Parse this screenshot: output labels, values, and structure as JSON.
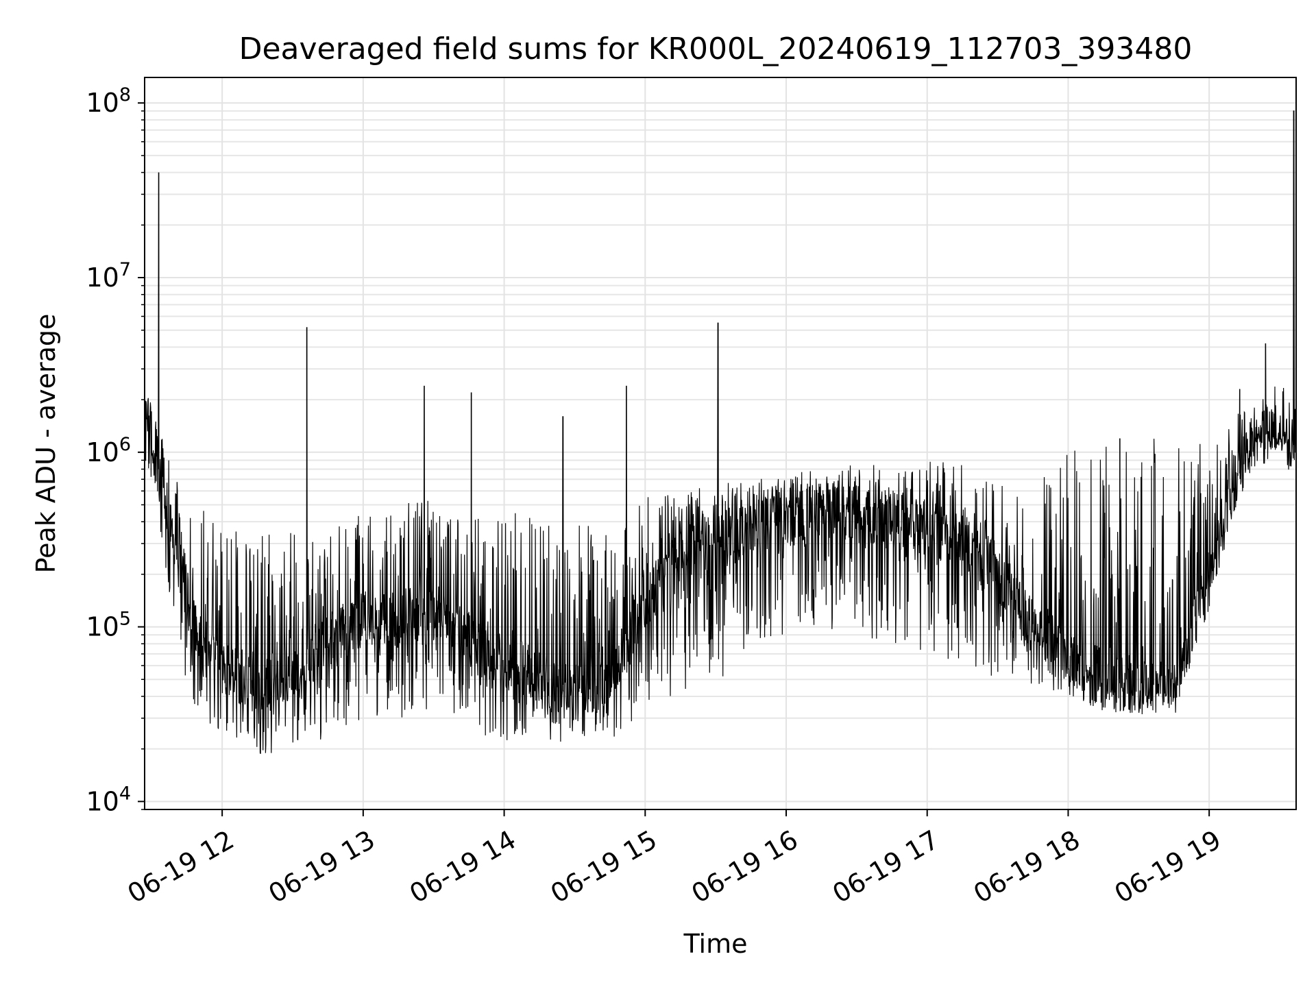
{
  "chart_data": {
    "type": "line",
    "title": "Deaveraged field sums for KR000L_20240619_112703_393480",
    "xlabel": "Time",
    "ylabel": "Peak ADU - average",
    "yscale": "log",
    "ylim": [
      9000,
      140000000
    ],
    "xlim": [
      "2024-06-19 11:27",
      "2024-06-19 19:37"
    ],
    "grid": true,
    "line_color": "#000000",
    "x_ticks": [
      {
        "t": "2024-06-19 12:00",
        "label": "06-19 12"
      },
      {
        "t": "2024-06-19 13:00",
        "label": "06-19 13"
      },
      {
        "t": "2024-06-19 14:00",
        "label": "06-19 14"
      },
      {
        "t": "2024-06-19 15:00",
        "label": "06-19 15"
      },
      {
        "t": "2024-06-19 16:00",
        "label": "06-19 16"
      },
      {
        "t": "2024-06-19 17:00",
        "label": "06-19 17"
      },
      {
        "t": "2024-06-19 18:00",
        "label": "06-19 18"
      },
      {
        "t": "2024-06-19 19:00",
        "label": "06-19 19"
      }
    ],
    "y_ticks": [
      {
        "value": 10000,
        "base": "10",
        "exp": "4"
      },
      {
        "value": 100000,
        "base": "10",
        "exp": "5"
      },
      {
        "value": 1000000,
        "base": "10",
        "exp": "6"
      },
      {
        "value": 10000000,
        "base": "10",
        "exp": "7"
      },
      {
        "value": 100000000,
        "base": "10",
        "exp": "8"
      }
    ],
    "series": [
      {
        "x": [
          "2024-06-19 11:27",
          "2024-06-19 11:30",
          "2024-06-19 11:33",
          "2024-06-19 11:36",
          "2024-06-19 11:40",
          "2024-06-19 11:45",
          "2024-06-19 11:50",
          "2024-06-19 12:00",
          "2024-06-19 12:10",
          "2024-06-19 12:20",
          "2024-06-19 12:30",
          "2024-06-19 12:40",
          "2024-06-19 12:50",
          "2024-06-19 13:00",
          "2024-06-19 13:15",
          "2024-06-19 13:30",
          "2024-06-19 13:45",
          "2024-06-19 14:00",
          "2024-06-19 14:15",
          "2024-06-19 14:30",
          "2024-06-19 14:45",
          "2024-06-19 15:00",
          "2024-06-19 15:15",
          "2024-06-19 15:30",
          "2024-06-19 15:45",
          "2024-06-19 16:00",
          "2024-06-19 16:15",
          "2024-06-19 16:30",
          "2024-06-19 16:45",
          "2024-06-19 17:00",
          "2024-06-19 17:15",
          "2024-06-19 17:30",
          "2024-06-19 17:45",
          "2024-06-19 18:00",
          "2024-06-19 18:15",
          "2024-06-19 18:30",
          "2024-06-19 18:45",
          "2024-06-19 19:00",
          "2024-06-19 19:10",
          "2024-06-19 19:20",
          "2024-06-19 19:30",
          "2024-06-19 19:36"
        ],
        "y": [
          1500000,
          1200000,
          800000,
          500000,
          300000,
          150000,
          90000,
          60000,
          50000,
          45000,
          50000,
          70000,
          90000,
          100000,
          110000,
          120000,
          90000,
          60000,
          50000,
          45000,
          50000,
          150000,
          250000,
          300000,
          380000,
          450000,
          480000,
          450000,
          400000,
          380000,
          300000,
          200000,
          100000,
          70000,
          50000,
          45000,
          45000,
          200000,
          600000,
          1300000,
          1200000,
          1100000
        ],
        "lower": [
          900000,
          700000,
          400000,
          200000,
          100000,
          40000,
          30000,
          25000,
          20000,
          18000,
          20000,
          22000,
          25000,
          30000,
          30000,
          30000,
          25000,
          22000,
          22000,
          22000,
          22000,
          30000,
          40000,
          50000,
          60000,
          80000,
          100000,
          90000,
          80000,
          70000,
          60000,
          50000,
          45000,
          40000,
          32000,
          32000,
          35000,
          120000,
          400000,
          1000000,
          1000000,
          900000
        ],
        "upper": [
          2500000,
          2000000,
          1500000,
          1000000,
          800000,
          600000,
          500000,
          400000,
          400000,
          350000,
          350000,
          350000,
          400000,
          450000,
          500000,
          550000,
          500000,
          450000,
          450000,
          450000,
          500000,
          550000,
          600000,
          650000,
          700000,
          750000,
          800000,
          850000,
          850000,
          900000,
          850000,
          700000,
          600000,
          1100000,
          1150000,
          1200000,
          1200000,
          1100000,
          1600000,
          2600000,
          2500000,
          2000000
        ]
      }
    ],
    "spikes": [
      {
        "t": "2024-06-19 11:33",
        "y": 40000000
      },
      {
        "t": "2024-06-19 12:36",
        "y": 5200000
      },
      {
        "t": "2024-06-19 13:26",
        "y": 2400000
      },
      {
        "t": "2024-06-19 13:46",
        "y": 2200000
      },
      {
        "t": "2024-06-19 14:25",
        "y": 1600000
      },
      {
        "t": "2024-06-19 14:52",
        "y": 2400000
      },
      {
        "t": "2024-06-19 15:31",
        "y": 5500000
      },
      {
        "t": "2024-06-19 18:22",
        "y": 1200000
      },
      {
        "t": "2024-06-19 19:13",
        "y": 2300000
      },
      {
        "t": "2024-06-19 19:24",
        "y": 4200000
      },
      {
        "t": "2024-06-19 19:36",
        "y": 90000000
      }
    ]
  }
}
